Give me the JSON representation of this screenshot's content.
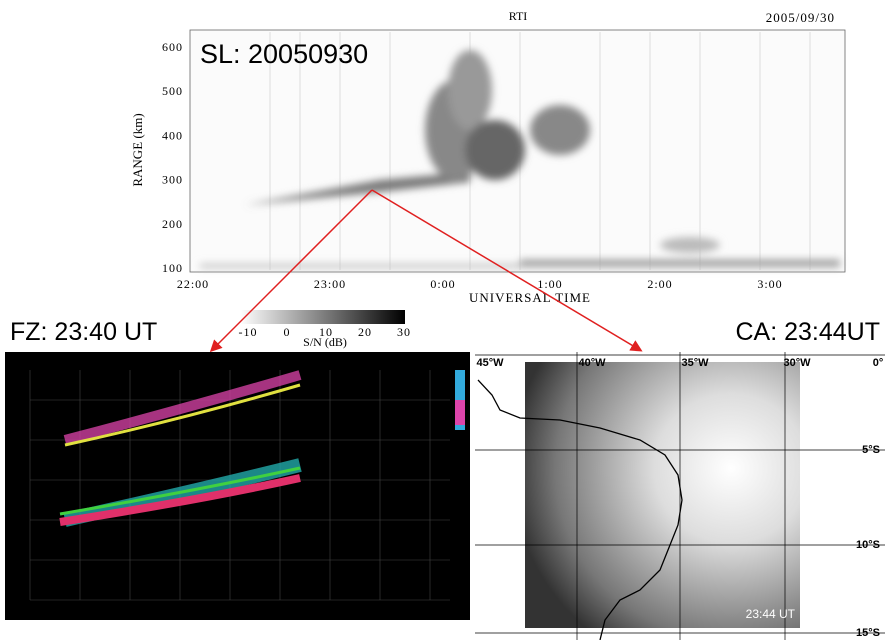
{
  "rti": {
    "title": "RTI",
    "date": "2005/09/30",
    "label": "SL: 20050930",
    "y_axis_label": "RANGE (km)",
    "x_axis_label": "UNIVERSAL TIME",
    "yticks": [
      600,
      500,
      400,
      300,
      200,
      100
    ],
    "xticks": [
      "22:00",
      "23:00",
      "0:00",
      "1:00",
      "2:00",
      "3:00"
    ],
    "colorbar": {
      "ticks": [
        -10,
        0,
        10,
        20,
        30
      ],
      "label": "S/N (dB)"
    }
  },
  "fz": {
    "label": "FZ: 23:40 UT"
  },
  "ca": {
    "label": "CA: 23:44UT",
    "time": "23:44 UT",
    "lon_labels": [
      "45°W",
      "40°W",
      "35°W",
      "30°W",
      "0°"
    ],
    "lat_labels": [
      "5°S",
      "10°S",
      "15°S"
    ]
  }
}
